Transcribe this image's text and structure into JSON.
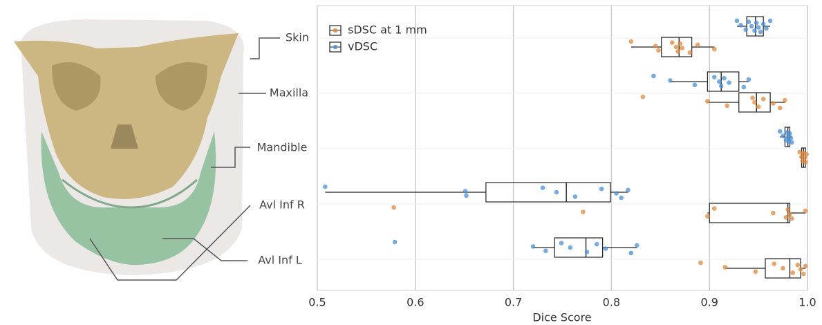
{
  "chart_data": {
    "type": "box",
    "orientation": "horizontal",
    "x_label": "Dice Score",
    "categories": [
      "Skin",
      "Maxilla",
      "Mandible",
      "Avl Inf R",
      "Avl Inf L"
    ],
    "xlim": [
      0.5,
      1.0
    ],
    "xticks": [
      0.5,
      0.6,
      0.7,
      0.8,
      0.9,
      {
        "value": 1.0,
        "label": "1.0"
      }
    ],
    "grid": true,
    "legend": "upper left",
    "series": [
      {
        "name": "sDSC at 1 mm",
        "color": "#e0873a",
        "boxes": [
          {
            "whislo": 0.82,
            "q1": 0.851,
            "med": 0.869,
            "q3": 0.882,
            "whishi": 0.905
          },
          {
            "whislo": 0.898,
            "q1": 0.93,
            "med": 0.948,
            "q3": 0.962,
            "whishi": 0.977
          },
          {
            "whislo": 0.992,
            "q1": 0.994,
            "med": 0.996,
            "q3": 0.998,
            "whishi": 0.999
          },
          {
            "whislo": 0.898,
            "q1": 0.9,
            "med": 0.98,
            "q3": 0.982,
            "whishi": 0.998
          },
          {
            "whislo": 0.916,
            "q1": 0.957,
            "med": 0.982,
            "q3": 0.993,
            "whishi": 0.998
          }
        ],
        "points": [
          [
            0.82,
            0.845,
            0.848,
            0.862,
            0.866,
            0.868,
            0.87,
            0.872,
            0.88,
            0.888,
            0.905
          ],
          [
            0.832,
            0.898,
            0.918,
            0.944,
            0.946,
            0.95,
            0.955,
            0.965,
            0.972,
            0.977
          ],
          [
            0.992,
            0.994,
            0.995,
            0.996,
            0.997,
            0.998,
            0.999
          ],
          [
            0.578,
            0.771,
            0.898,
            0.905,
            0.965,
            0.978,
            0.98,
            0.982,
            0.984,
            0.998
          ],
          [
            0.891,
            0.916,
            0.947,
            0.966,
            0.975,
            0.985,
            0.99,
            0.993,
            0.996,
            0.998
          ]
        ]
      },
      {
        "name": "vDSC",
        "color": "#4a8fd6",
        "boxes": [
          {
            "whislo": 0.928,
            "q1": 0.938,
            "med": 0.947,
            "q3": 0.955,
            "whishi": 0.962
          },
          {
            "whislo": 0.86,
            "q1": 0.898,
            "med": 0.912,
            "q3": 0.93,
            "whishi": 0.94
          },
          {
            "whislo": 0.972,
            "q1": 0.977,
            "med": 0.98,
            "q3": 0.982,
            "whishi": 0.984
          },
          {
            "whislo": 0.508,
            "q1": 0.672,
            "med": 0.754,
            "q3": 0.799,
            "whishi": 0.817
          },
          {
            "whislo": 0.72,
            "q1": 0.742,
            "med": 0.774,
            "q3": 0.791,
            "whishi": 0.826
          }
        ],
        "points": [
          [
            0.928,
            0.932,
            0.937,
            0.94,
            0.943,
            0.946,
            0.948,
            0.95,
            0.952,
            0.955,
            0.958,
            0.962
          ],
          [
            0.843,
            0.86,
            0.885,
            0.905,
            0.91,
            0.912,
            0.915,
            0.92,
            0.935,
            0.94
          ],
          [
            0.972,
            0.975,
            0.978,
            0.979,
            0.98,
            0.981,
            0.982,
            0.983,
            0.984
          ],
          [
            0.508,
            0.651,
            0.652,
            0.73,
            0.744,
            0.763,
            0.79,
            0.805,
            0.81,
            0.817
          ],
          [
            0.579,
            0.72,
            0.733,
            0.749,
            0.758,
            0.775,
            0.785,
            0.794,
            0.82,
            0.826
          ]
        ]
      }
    ]
  }
}
